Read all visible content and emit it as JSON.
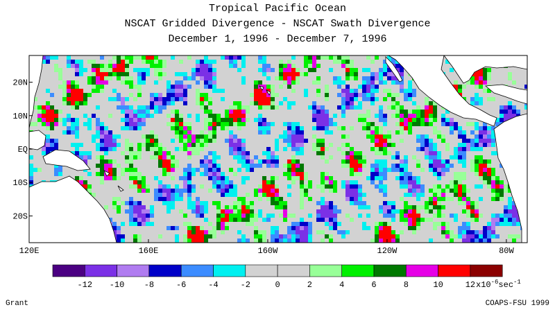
{
  "title": {
    "line1": "Tropical Pacific Ocean",
    "line2": "NSCAT Gridded Divergence - NSCAT Swath Divergence",
    "line3": "December 1, 1996 - December 7, 1996"
  },
  "map": {
    "lat_labels": [
      "20N",
      "10N",
      "EQ",
      "10S",
      "20S"
    ],
    "lon_labels": [
      "120E",
      "160E",
      "160W",
      "120W",
      "80W"
    ],
    "lat_range": [
      -28,
      28
    ],
    "lon_range": [
      120,
      287
    ],
    "land_color": "#ffffff",
    "coastline_color": "#000000"
  },
  "colorbar": {
    "colors": [
      "#4b0082",
      "#7b30e6",
      "#b07cf0",
      "#0000c8",
      "#3c8cff",
      "#00f0f0",
      "#d2d2d2",
      "#d2d2d2",
      "#98ff98",
      "#00f000",
      "#007800",
      "#e600e6",
      "#ff0000",
      "#8b0000"
    ],
    "tick_labels": [
      "-12",
      "-10",
      "-8",
      "-6",
      "-4",
      "-2",
      "0",
      "2",
      "4",
      "6",
      "8",
      "10",
      "12"
    ],
    "units": "x10",
    "units_exp": "-6",
    "units_tail": "sec",
    "units_tail_exp": "-1"
  },
  "credits": {
    "left": "Grant",
    "right": "COAPS-FSU 1999"
  }
}
